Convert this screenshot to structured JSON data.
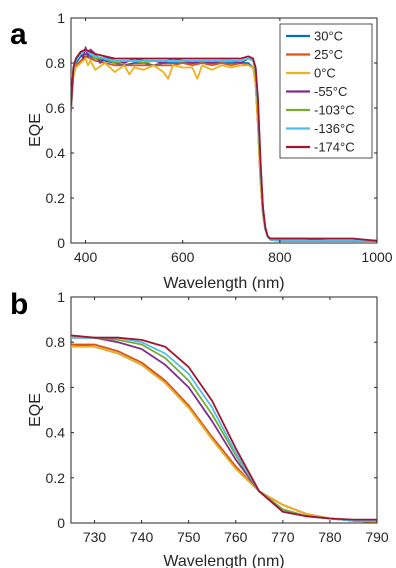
{
  "series_colors": {
    "30°C": "#0072BD",
    "25°C": "#D95319",
    "0°C": "#EDB120",
    "-55°C": "#7E2F8E",
    "-103°C": "#77AC30",
    "-136°C": "#4DBEEE",
    "-174°C": "#A2142F"
  },
  "chart_data": [
    {
      "panel_label": "a",
      "type": "line",
      "xlabel": "Wavelength (nm)",
      "ylabel": "EQE",
      "xlim": [
        370,
        1000
      ],
      "ylim": [
        0,
        1
      ],
      "xticks": [
        400,
        600,
        800,
        1000
      ],
      "yticks": [
        0,
        0.2,
        0.4,
        0.6,
        0.8,
        1
      ],
      "xtick_labels": [
        "400",
        "600",
        "800",
        "1000"
      ],
      "ytick_labels": [
        "0",
        "0.2",
        "0.4",
        "0.6",
        "0.8",
        "1"
      ],
      "grid": false,
      "legend": "top-right",
      "series": [
        {
          "name": "30°C",
          "x": [
            370,
            375,
            380,
            390,
            400,
            410,
            420,
            440,
            460,
            480,
            500,
            520,
            540,
            560,
            580,
            600,
            620,
            640,
            660,
            680,
            700,
            720,
            735,
            745,
            750,
            755,
            760,
            765,
            770,
            775,
            780,
            800,
            850,
            900,
            950,
            1000
          ],
          "y": [
            0.59,
            0.76,
            0.8,
            0.83,
            0.84,
            0.83,
            0.82,
            0.81,
            0.8,
            0.79,
            0.8,
            0.8,
            0.79,
            0.8,
            0.8,
            0.8,
            0.8,
            0.8,
            0.8,
            0.8,
            0.8,
            0.8,
            0.8,
            0.78,
            0.71,
            0.52,
            0.28,
            0.13,
            0.06,
            0.03,
            0.015,
            0.01,
            0.01,
            0.01,
            0.01,
            0.01
          ]
        },
        {
          "name": "25°C",
          "x": [
            370,
            375,
            380,
            390,
            400,
            410,
            420,
            440,
            460,
            480,
            500,
            520,
            540,
            560,
            580,
            600,
            620,
            640,
            660,
            680,
            700,
            720,
            735,
            745,
            750,
            755,
            760,
            765,
            770,
            775,
            780,
            800,
            850,
            900,
            950,
            1000
          ],
          "y": [
            0.58,
            0.75,
            0.79,
            0.81,
            0.83,
            0.82,
            0.81,
            0.8,
            0.79,
            0.79,
            0.79,
            0.79,
            0.79,
            0.79,
            0.79,
            0.8,
            0.79,
            0.8,
            0.79,
            0.8,
            0.79,
            0.8,
            0.79,
            0.78,
            0.71,
            0.52,
            0.28,
            0.13,
            0.06,
            0.03,
            0.015,
            0.01,
            0.01,
            0.01,
            0.01,
            0.01
          ]
        },
        {
          "name": "0°C",
          "x": [
            370,
            375,
            380,
            390,
            400,
            405,
            410,
            420,
            440,
            460,
            480,
            490,
            500,
            520,
            540,
            560,
            570,
            580,
            600,
            620,
            630,
            640,
            660,
            680,
            700,
            720,
            735,
            745,
            750,
            755,
            760,
            765,
            770,
            775,
            780,
            800,
            850,
            900,
            950,
            1000
          ],
          "y": [
            0.6,
            0.74,
            0.78,
            0.8,
            0.82,
            0.79,
            0.81,
            0.77,
            0.8,
            0.76,
            0.79,
            0.75,
            0.78,
            0.77,
            0.79,
            0.76,
            0.73,
            0.79,
            0.78,
            0.78,
            0.73,
            0.79,
            0.77,
            0.79,
            0.78,
            0.79,
            0.79,
            0.78,
            0.71,
            0.52,
            0.28,
            0.13,
            0.06,
            0.03,
            0.015,
            0.01,
            0.01,
            0.01,
            0.01,
            0.01
          ]
        },
        {
          "name": "-55°C",
          "x": [
            370,
            375,
            380,
            390,
            395,
            400,
            405,
            410,
            420,
            430,
            440,
            460,
            480,
            500,
            520,
            540,
            560,
            580,
            600,
            620,
            640,
            660,
            680,
            700,
            720,
            735,
            745,
            750,
            755,
            760,
            765,
            770,
            775,
            780,
            790,
            800,
            850,
            900,
            950,
            1000
          ],
          "y": [
            0.6,
            0.78,
            0.82,
            0.85,
            0.82,
            0.87,
            0.83,
            0.86,
            0.84,
            0.8,
            0.83,
            0.81,
            0.8,
            0.82,
            0.81,
            0.81,
            0.8,
            0.82,
            0.81,
            0.8,
            0.81,
            0.8,
            0.81,
            0.81,
            0.8,
            0.82,
            0.81,
            0.78,
            0.62,
            0.36,
            0.16,
            0.07,
            0.03,
            0.02,
            0.02,
            0.02,
            0.02,
            0.01,
            0.01,
            0.01
          ]
        },
        {
          "name": "-103°C",
          "x": [
            370,
            375,
            380,
            390,
            400,
            410,
            420,
            440,
            460,
            480,
            500,
            520,
            540,
            560,
            580,
            600,
            620,
            640,
            660,
            680,
            700,
            720,
            735,
            745,
            750,
            755,
            760,
            765,
            770,
            775,
            780,
            800,
            850,
            900,
            950,
            1000
          ],
          "y": [
            0.6,
            0.77,
            0.81,
            0.84,
            0.86,
            0.84,
            0.82,
            0.82,
            0.8,
            0.81,
            0.81,
            0.8,
            0.81,
            0.81,
            0.81,
            0.81,
            0.81,
            0.81,
            0.81,
            0.81,
            0.81,
            0.81,
            0.82,
            0.81,
            0.76,
            0.59,
            0.33,
            0.14,
            0.06,
            0.03,
            0.015,
            0.01,
            0.01,
            0.01,
            0.01,
            0.01
          ]
        },
        {
          "name": "-136°C",
          "x": [
            370,
            375,
            380,
            390,
            400,
            410,
            420,
            440,
            460,
            480,
            500,
            520,
            540,
            560,
            580,
            600,
            620,
            640,
            660,
            680,
            700,
            720,
            735,
            745,
            750,
            755,
            760,
            765,
            770,
            775,
            780,
            800,
            850,
            900,
            950,
            1000
          ],
          "y": [
            0.6,
            0.77,
            0.81,
            0.84,
            0.86,
            0.84,
            0.83,
            0.82,
            0.81,
            0.81,
            0.81,
            0.81,
            0.81,
            0.81,
            0.81,
            0.81,
            0.81,
            0.81,
            0.81,
            0.81,
            0.81,
            0.81,
            0.82,
            0.81,
            0.77,
            0.61,
            0.35,
            0.15,
            0.06,
            0.03,
            0.015,
            0.01,
            0.01,
            0.01,
            0.01,
            0.01
          ]
        },
        {
          "name": "-174°C",
          "x": [
            370,
            375,
            380,
            390,
            400,
            410,
            420,
            440,
            460,
            480,
            500,
            520,
            540,
            560,
            580,
            600,
            620,
            640,
            660,
            680,
            700,
            720,
            735,
            745,
            750,
            755,
            760,
            765,
            770,
            775,
            780,
            790,
            800,
            850,
            900,
            950,
            1000
          ],
          "y": [
            0.61,
            0.78,
            0.82,
            0.85,
            0.86,
            0.85,
            0.84,
            0.83,
            0.82,
            0.82,
            0.82,
            0.82,
            0.82,
            0.82,
            0.82,
            0.82,
            0.82,
            0.82,
            0.82,
            0.82,
            0.82,
            0.82,
            0.83,
            0.82,
            0.78,
            0.64,
            0.38,
            0.16,
            0.07,
            0.03,
            0.02,
            0.02,
            0.02,
            0.02,
            0.02,
            0.02,
            0.01
          ]
        }
      ]
    },
    {
      "panel_label": "b",
      "type": "line",
      "xlabel": "Wavelength (nm)",
      "ylabel": "EQE",
      "xlim": [
        725,
        790
      ],
      "ylim": [
        0,
        1
      ],
      "xticks": [
        730,
        740,
        750,
        760,
        770,
        780,
        790
      ],
      "yticks": [
        0,
        0.2,
        0.4,
        0.6,
        0.8,
        1
      ],
      "xtick_labels": [
        "730",
        "740",
        "750",
        "760",
        "770",
        "780",
        "790"
      ],
      "ytick_labels": [
        "0",
        "0.2",
        "0.4",
        "0.6",
        "0.8",
        "1"
      ],
      "grid": false,
      "series": [
        {
          "name": "30°C",
          "x": [
            725,
            730,
            735,
            740,
            745,
            750,
            755,
            760,
            765,
            770,
            775,
            780,
            785,
            790
          ],
          "y": [
            0.79,
            0.78,
            0.75,
            0.7,
            0.62,
            0.51,
            0.37,
            0.24,
            0.14,
            0.08,
            0.04,
            0.02,
            0.01,
            0.005
          ]
        },
        {
          "name": "25°C",
          "x": [
            725,
            730,
            735,
            740,
            745,
            750,
            755,
            760,
            765,
            770,
            775,
            780,
            785,
            790
          ],
          "y": [
            0.79,
            0.79,
            0.76,
            0.71,
            0.63,
            0.52,
            0.38,
            0.25,
            0.14,
            0.08,
            0.04,
            0.02,
            0.01,
            0.005
          ]
        },
        {
          "name": "0°C",
          "x": [
            725,
            730,
            735,
            740,
            745,
            750,
            755,
            760,
            765,
            770,
            775,
            780,
            785,
            790
          ],
          "y": [
            0.78,
            0.78,
            0.75,
            0.7,
            0.62,
            0.51,
            0.37,
            0.24,
            0.14,
            0.08,
            0.04,
            0.02,
            0.01,
            0.005
          ]
        },
        {
          "name": "-55°C",
          "x": [
            725,
            730,
            735,
            740,
            745,
            750,
            755,
            760,
            765,
            770,
            775,
            780,
            785,
            790
          ],
          "y": [
            0.82,
            0.82,
            0.8,
            0.77,
            0.7,
            0.6,
            0.45,
            0.28,
            0.14,
            0.06,
            0.03,
            0.02,
            0.01,
            0.01
          ]
        },
        {
          "name": "-103°C",
          "x": [
            725,
            730,
            735,
            740,
            745,
            750,
            755,
            760,
            765,
            770,
            775,
            780,
            785,
            790
          ],
          "y": [
            0.82,
            0.82,
            0.81,
            0.79,
            0.73,
            0.63,
            0.48,
            0.3,
            0.14,
            0.06,
            0.03,
            0.02,
            0.01,
            0.01
          ]
        },
        {
          "name": "-136°C",
          "x": [
            725,
            730,
            735,
            740,
            745,
            750,
            755,
            760,
            765,
            770,
            775,
            780,
            785,
            790
          ],
          "y": [
            0.82,
            0.82,
            0.82,
            0.8,
            0.75,
            0.66,
            0.51,
            0.31,
            0.14,
            0.05,
            0.03,
            0.02,
            0.01,
            0.01
          ]
        },
        {
          "name": "-174°C",
          "x": [
            725,
            730,
            735,
            740,
            745,
            750,
            755,
            760,
            765,
            770,
            775,
            780,
            785,
            790
          ],
          "y": [
            0.83,
            0.82,
            0.82,
            0.81,
            0.78,
            0.69,
            0.54,
            0.33,
            0.14,
            0.05,
            0.03,
            0.02,
            0.015,
            0.015
          ]
        }
      ]
    }
  ]
}
